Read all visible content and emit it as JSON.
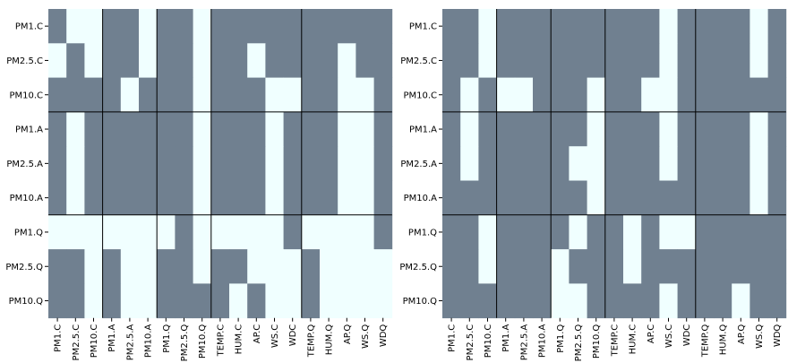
{
  "chart_data": [
    {
      "type": "heatmap",
      "title": "",
      "xlabel": "",
      "ylabel": "",
      "rows": [
        "PM1.C",
        "PM2.5.C",
        "PM10.C",
        "PM1.A",
        "PM2.5.A",
        "PM10.A",
        "PM1.Q",
        "PM2.5.Q",
        "PM10.Q"
      ],
      "columns": [
        "PM1.C",
        "PM2.5.C",
        "PM10.C",
        "PM1.A",
        "PM2.5.A",
        "PM10.A",
        "PM1.Q",
        "PM2.5.Q",
        "PM10.Q",
        "TEMP.C",
        "HUM.C",
        "AP.C",
        "WS.C",
        "WDC",
        "TEMP.Q",
        "HUM.Q",
        "AP.Q",
        "WS.Q",
        "WDQ"
      ],
      "values": [
        [
          0,
          1,
          1,
          0,
          0,
          1,
          0,
          0,
          1,
          0,
          0,
          0,
          0,
          0,
          0,
          0,
          0,
          0,
          0
        ],
        [
          1,
          0,
          1,
          0,
          0,
          1,
          0,
          0,
          1,
          0,
          0,
          1,
          0,
          0,
          0,
          0,
          1,
          0,
          0
        ],
        [
          0,
          0,
          0,
          0,
          1,
          0,
          0,
          0,
          1,
          0,
          0,
          0,
          1,
          1,
          0,
          0,
          1,
          1,
          0
        ],
        [
          0,
          1,
          0,
          0,
          0,
          0,
          0,
          0,
          1,
          0,
          0,
          0,
          1,
          0,
          0,
          0,
          1,
          1,
          0
        ],
        [
          0,
          1,
          0,
          0,
          0,
          0,
          0,
          0,
          1,
          0,
          0,
          0,
          1,
          0,
          0,
          0,
          1,
          1,
          0
        ],
        [
          0,
          1,
          0,
          0,
          0,
          0,
          0,
          0,
          1,
          0,
          0,
          0,
          1,
          0,
          0,
          0,
          1,
          1,
          0
        ],
        [
          1,
          1,
          1,
          1,
          1,
          1,
          1,
          0,
          1,
          1,
          1,
          1,
          1,
          0,
          1,
          1,
          1,
          1,
          0
        ],
        [
          0,
          0,
          1,
          0,
          1,
          1,
          0,
          0,
          1,
          0,
          0,
          1,
          1,
          1,
          0,
          1,
          1,
          1,
          1
        ],
        [
          0,
          0,
          1,
          0,
          1,
          1,
          0,
          0,
          0,
          0,
          1,
          0,
          1,
          1,
          0,
          1,
          1,
          1,
          1
        ]
      ],
      "group_boundaries_after_columns": [
        3,
        6,
        9,
        14
      ],
      "group_boundaries_after_rows": [
        3,
        6
      ],
      "colors": {
        "0": "#708090",
        "1": "#f0ffff"
      },
      "grid": false
    },
    {
      "type": "heatmap",
      "title": "",
      "xlabel": "",
      "ylabel": "",
      "rows": [
        "PM1.C",
        "PM2.5.C",
        "PM10.C",
        "PM1.A",
        "PM2.5.A",
        "PM10.A",
        "PM1.Q",
        "PM2.5.Q",
        "PM10.Q"
      ],
      "columns": [
        "PM1.C",
        "PM2.5.C",
        "PM10.C",
        "PM1.A",
        "PM2.5.A",
        "PM10.A",
        "PM1.Q",
        "PM2.5.Q",
        "PM10.Q",
        "TEMP.C",
        "HUM.C",
        "AP.C",
        "WS.C",
        "WDC",
        "TEMP.Q",
        "HUM.Q",
        "AP.Q",
        "WS.Q",
        "WDQ"
      ],
      "values": [
        [
          0,
          0,
          1,
          0,
          0,
          0,
          0,
          0,
          0,
          0,
          0,
          0,
          1,
          0,
          0,
          0,
          0,
          1,
          0
        ],
        [
          0,
          0,
          1,
          0,
          0,
          0,
          0,
          0,
          0,
          0,
          0,
          0,
          1,
          0,
          0,
          0,
          0,
          1,
          0
        ],
        [
          0,
          1,
          0,
          1,
          1,
          0,
          0,
          0,
          1,
          0,
          0,
          1,
          1,
          0,
          0,
          0,
          0,
          0,
          0
        ],
        [
          0,
          1,
          0,
          0,
          0,
          0,
          0,
          0,
          1,
          0,
          0,
          0,
          1,
          0,
          0,
          0,
          0,
          1,
          0
        ],
        [
          0,
          1,
          0,
          0,
          0,
          0,
          0,
          1,
          1,
          0,
          0,
          0,
          1,
          0,
          0,
          0,
          0,
          1,
          0
        ],
        [
          0,
          0,
          0,
          0,
          0,
          0,
          0,
          0,
          1,
          0,
          0,
          0,
          0,
          0,
          0,
          0,
          0,
          1,
          0
        ],
        [
          0,
          0,
          1,
          0,
          0,
          0,
          0,
          1,
          0,
          0,
          1,
          0,
          1,
          1,
          0,
          0,
          0,
          0,
          0
        ],
        [
          0,
          0,
          1,
          0,
          0,
          0,
          1,
          0,
          0,
          0,
          1,
          0,
          0,
          0,
          0,
          0,
          0,
          0,
          0
        ],
        [
          0,
          0,
          0,
          0,
          0,
          0,
          1,
          1,
          0,
          0,
          0,
          0,
          1,
          0,
          0,
          0,
          1,
          0,
          0
        ]
      ],
      "group_boundaries_after_columns": [
        3,
        6,
        9,
        14
      ],
      "group_boundaries_after_rows": [
        3,
        6
      ],
      "colors": {
        "0": "#708090",
        "1": "#f0ffff"
      },
      "grid": false
    }
  ]
}
